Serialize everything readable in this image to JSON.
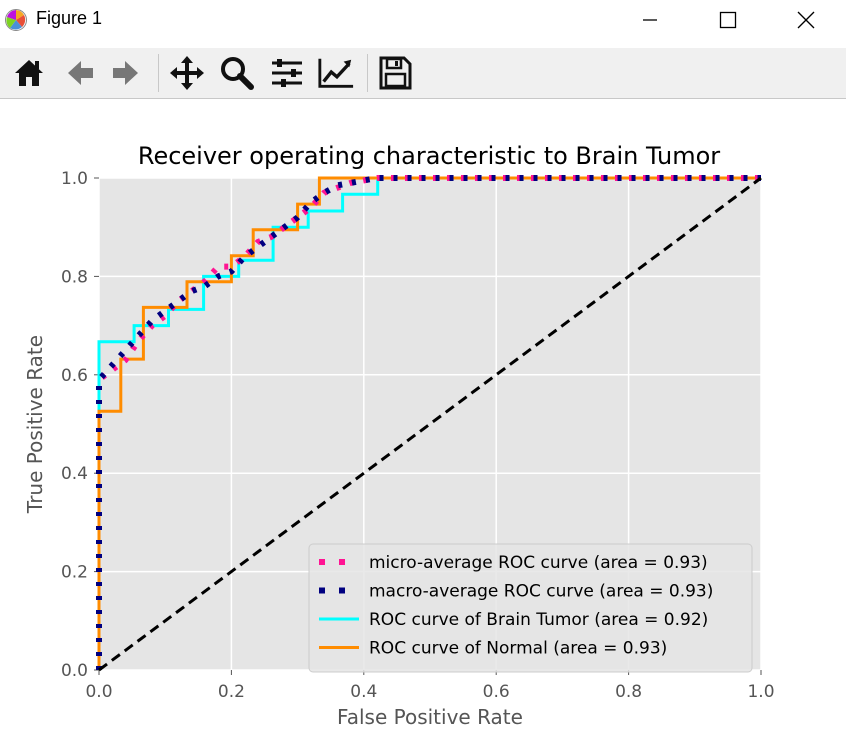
{
  "window": {
    "title": "Figure 1",
    "app_icon": "matplotlib-icon",
    "controls": [
      "minimize-icon",
      "maximize-icon",
      "close-icon"
    ]
  },
  "toolbar": {
    "buttons": [
      {
        "name": "home",
        "icon": "home-icon"
      },
      {
        "name": "back",
        "icon": "arrow-left-icon"
      },
      {
        "name": "forward",
        "icon": "arrow-right-icon"
      },
      {
        "name": "pan",
        "icon": "move-icon"
      },
      {
        "name": "zoom",
        "icon": "zoom-icon"
      },
      {
        "name": "configure-subplots",
        "icon": "sliders-icon"
      },
      {
        "name": "edit-axis",
        "icon": "chart-edit-icon"
      },
      {
        "name": "save",
        "icon": "save-icon"
      }
    ]
  },
  "chart_data": {
    "type": "line",
    "title": "Receiver operating characteristic to Brain Tumor",
    "xlabel": "False Positive Rate",
    "ylabel": "True Positive Rate",
    "xlim": [
      0.0,
      1.0
    ],
    "ylim": [
      0.0,
      1.0
    ],
    "xticks": [
      "0.0",
      "0.2",
      "0.4",
      "0.6",
      "0.8",
      "1.0"
    ],
    "yticks": [
      "0.0",
      "0.2",
      "0.4",
      "0.6",
      "0.8",
      "1.0"
    ],
    "grid": true,
    "background": "#e5e5e5",
    "legend_position": "lower-right",
    "series": [
      {
        "name": "micro-average ROC curve (area = 0.93)",
        "color": "#ff1493",
        "style": "dotted",
        "x": [
          0.0,
          0.0,
          0.02,
          0.04,
          0.06,
          0.08,
          0.1,
          0.12,
          0.14,
          0.16,
          0.18,
          0.2,
          0.22,
          0.24,
          0.26,
          0.28,
          0.3,
          0.32,
          0.34,
          0.36,
          0.38,
          0.42,
          1.0
        ],
        "y": [
          0.0,
          0.59,
          0.61,
          0.63,
          0.67,
          0.7,
          0.72,
          0.75,
          0.77,
          0.79,
          0.82,
          0.82,
          0.84,
          0.87,
          0.88,
          0.9,
          0.92,
          0.94,
          0.97,
          0.98,
          0.99,
          1.0,
          1.0
        ]
      },
      {
        "name": "macro-average ROC curve (area = 0.93)",
        "color": "#000080",
        "style": "dotted",
        "x": [
          0.0,
          0.0,
          0.02,
          0.04,
          0.06,
          0.08,
          0.1,
          0.12,
          0.14,
          0.16,
          0.18,
          0.2,
          0.22,
          0.24,
          0.26,
          0.28,
          0.3,
          0.32,
          0.34,
          0.36,
          0.38,
          0.42,
          1.0
        ],
        "y": [
          0.0,
          0.59,
          0.62,
          0.65,
          0.68,
          0.71,
          0.73,
          0.75,
          0.77,
          0.78,
          0.8,
          0.81,
          0.84,
          0.86,
          0.88,
          0.9,
          0.92,
          0.95,
          0.97,
          0.985,
          0.99,
          1.0,
          1.0
        ]
      },
      {
        "name": "ROC curve of Brain Tumor (area = 0.92)",
        "color": "#00ffff",
        "style": "solid",
        "x": [
          0.0,
          0.0,
          0.053,
          0.053,
          0.105,
          0.105,
          0.158,
          0.158,
          0.211,
          0.211,
          0.263,
          0.263,
          0.316,
          0.316,
          0.368,
          0.368,
          0.421,
          0.421,
          1.0
        ],
        "y": [
          0.0,
          0.667,
          0.667,
          0.7,
          0.7,
          0.733,
          0.733,
          0.8,
          0.8,
          0.833,
          0.833,
          0.9,
          0.9,
          0.933,
          0.933,
          0.967,
          0.967,
          1.0,
          1.0
        ]
      },
      {
        "name": "ROC curve of Normal (area = 0.93)",
        "color": "#ff8c00",
        "style": "solid",
        "x": [
          0.0,
          0.0,
          0.033,
          0.033,
          0.067,
          0.067,
          0.133,
          0.133,
          0.2,
          0.2,
          0.233,
          0.233,
          0.3,
          0.3,
          0.333,
          0.333,
          1.0
        ],
        "y": [
          0.0,
          0.526,
          0.526,
          0.632,
          0.632,
          0.737,
          0.737,
          0.789,
          0.789,
          0.842,
          0.842,
          0.895,
          0.895,
          0.947,
          0.947,
          1.0,
          1.0
        ]
      },
      {
        "name": "",
        "color": "#000000",
        "style": "dashed",
        "x": [
          0.0,
          1.0
        ],
        "y": [
          0.0,
          1.0
        ]
      }
    ]
  }
}
